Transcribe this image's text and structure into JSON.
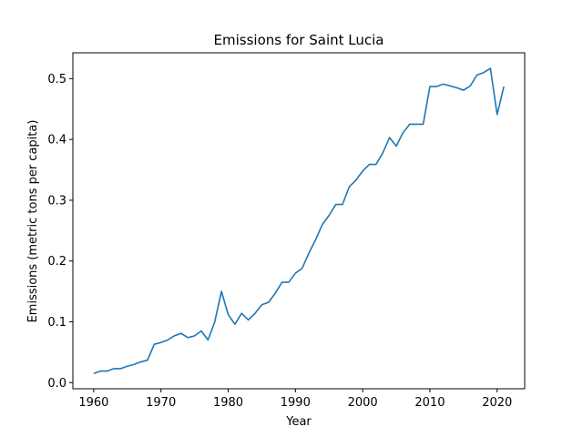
{
  "chart_data": {
    "type": "line",
    "title": "Emissions for Saint Lucia",
    "xlabel": "Year",
    "ylabel": "Emissions (metric tons per capita)",
    "xlim": [
      1956.9,
      2024.1
    ],
    "ylim": [
      -0.0101,
      0.5425
    ],
    "xticks": [
      1960,
      1970,
      1980,
      1990,
      2000,
      2010,
      2020
    ],
    "yticks": [
      0.0,
      0.1,
      0.2,
      0.3,
      0.4,
      0.5
    ],
    "ytick_labels": [
      "0.0",
      "0.1",
      "0.2",
      "0.3",
      "0.4",
      "0.5"
    ],
    "grid": false,
    "line_color": "#1f77b4",
    "series": [
      {
        "x": [
          1960,
          1961,
          1962,
          1963,
          1964,
          1965,
          1966,
          1967,
          1968,
          1969,
          1970,
          1971,
          1972,
          1973,
          1974,
          1975,
          1976,
          1977,
          1978,
          1979,
          1980,
          1981,
          1982,
          1983,
          1984,
          1985,
          1986,
          1987,
          1988,
          1989,
          1990,
          1991,
          1992,
          1993,
          1994,
          1995,
          1996,
          1997,
          1998,
          1999,
          2000,
          2001,
          2002,
          2003,
          2004,
          2005,
          2006,
          2007,
          2008,
          2009,
          2010,
          2011,
          2012,
          2013,
          2014,
          2015,
          2016,
          2017,
          2018,
          2019,
          2020,
          2021
        ],
        "y": [
          0.015,
          0.019,
          0.019,
          0.023,
          0.023,
          0.027,
          0.03,
          0.034,
          0.037,
          0.063,
          0.066,
          0.07,
          0.077,
          0.081,
          0.074,
          0.077,
          0.085,
          0.07,
          0.1,
          0.15,
          0.112,
          0.096,
          0.114,
          0.103,
          0.114,
          0.128,
          0.132,
          0.147,
          0.165,
          0.165,
          0.18,
          0.188,
          0.213,
          0.235,
          0.26,
          0.275,
          0.293,
          0.293,
          0.322,
          0.333,
          0.348,
          0.359,
          0.359,
          0.378,
          0.403,
          0.389,
          0.411,
          0.425,
          0.425,
          0.425,
          0.487,
          0.487,
          0.491,
          0.488,
          0.485,
          0.481,
          0.488,
          0.506,
          0.51,
          0.517,
          0.441,
          0.487
        ]
      }
    ]
  }
}
